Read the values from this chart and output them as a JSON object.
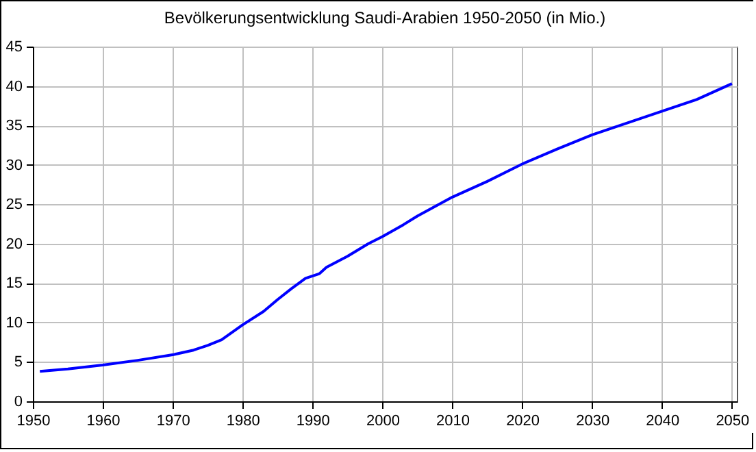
{
  "chart_data": {
    "type": "line",
    "title": "Bevölkerungsentwicklung Saudi-Arabien 1950-2050 (in Mio.)",
    "x": [
      1951,
      1955,
      1960,
      1965,
      1970,
      1973,
      1975,
      1977,
      1980,
      1983,
      1985,
      1987,
      1989,
      1991,
      1992,
      1995,
      1998,
      2000,
      2003,
      2005,
      2010,
      2015,
      2020,
      2025,
      2030,
      2035,
      2040,
      2045,
      2050
    ],
    "series": [
      {
        "color": "#0000ff",
        "values": [
          3.8,
          4.1,
          4.6,
          5.2,
          5.9,
          6.5,
          7.1,
          7.8,
          9.7,
          11.4,
          12.9,
          14.3,
          15.6,
          16.2,
          17.0,
          18.4,
          20.0,
          20.9,
          22.4,
          23.5,
          25.9,
          27.9,
          30.1,
          32.0,
          33.8,
          35.3,
          36.8,
          38.3,
          40.3
        ]
      }
    ],
    "xlim": [
      1950,
      2050.7
    ],
    "xticks": [
      1950,
      1960,
      1970,
      1980,
      1990,
      2000,
      2010,
      2020,
      2030,
      2040,
      2050
    ],
    "ylim": [
      0,
      45
    ],
    "yticks": [
      0,
      5,
      10,
      15,
      20,
      25,
      30,
      35,
      40,
      45
    ],
    "grid": true,
    "line_style": "solid"
  }
}
